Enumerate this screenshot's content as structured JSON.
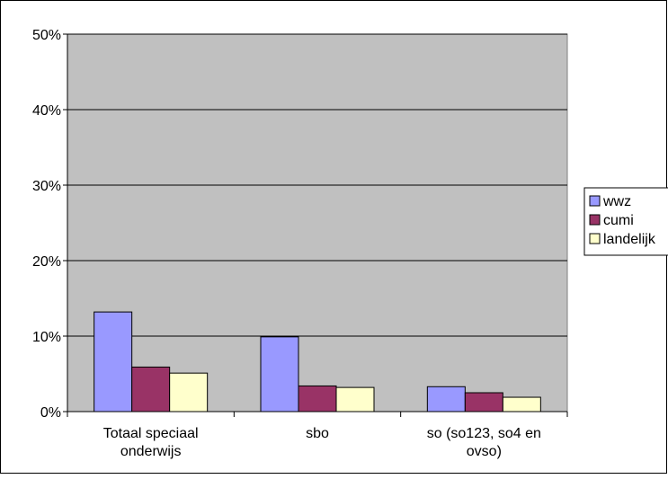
{
  "chart_data": {
    "type": "bar",
    "title": "",
    "xlabel": "",
    "ylabel": "",
    "categories": [
      [
        "Totaal speciaal",
        "onderwijs"
      ],
      [
        "sbo"
      ],
      [
        "so (so123, so4 en",
        "ovso)"
      ]
    ],
    "series": [
      {
        "name": "wwz",
        "color": "#9999ff",
        "values": [
          0.132,
          0.099,
          0.033
        ]
      },
      {
        "name": "cumi",
        "color": "#993366",
        "values": [
          0.059,
          0.034,
          0.025
        ]
      },
      {
        "name": "landelijk",
        "color": "#ffffcc",
        "values": [
          0.051,
          0.032,
          0.019
        ]
      }
    ],
    "ylim": [
      0,
      0.5
    ],
    "yticks": [
      0,
      0.1,
      0.2,
      0.3,
      0.4,
      0.5
    ],
    "ytick_labels": [
      "0%",
      "10%",
      "20%",
      "30%",
      "40%",
      "50%"
    ],
    "grid": true,
    "plot_background": "#c0c0c0",
    "legend": "right"
  }
}
